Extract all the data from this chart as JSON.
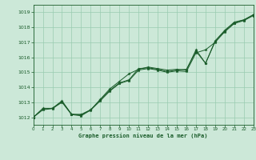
{
  "title": "Graphe pression niveau de la mer (hPa)",
  "xlim": [
    0,
    23
  ],
  "ylim": [
    1011.5,
    1019.5
  ],
  "yticks": [
    1012,
    1013,
    1014,
    1015,
    1016,
    1017,
    1018,
    1019
  ],
  "xticks": [
    0,
    1,
    2,
    3,
    4,
    5,
    6,
    7,
    8,
    9,
    10,
    11,
    12,
    13,
    14,
    15,
    16,
    17,
    18,
    19,
    20,
    21,
    22,
    23
  ],
  "bg_color": "#cce8d8",
  "grid_color": "#99ccb0",
  "line_color": "#1a5c2a",
  "series1": [
    1012.0,
    1012.6,
    1012.6,
    1013.1,
    1012.2,
    1012.2,
    1012.5,
    1013.2,
    1013.9,
    1014.4,
    1014.9,
    1015.2,
    1015.35,
    1015.25,
    1015.15,
    1015.2,
    1015.15,
    1016.5,
    1015.6,
    1017.1,
    1017.8,
    1018.35,
    1018.5,
    1018.85
  ],
  "series2": [
    1012.0,
    1012.55,
    1012.6,
    1013.05,
    1012.2,
    1012.15,
    1012.5,
    1013.15,
    1013.8,
    1014.3,
    1014.5,
    1015.25,
    1015.3,
    1015.2,
    1015.05,
    1015.15,
    1015.2,
    1016.4,
    1015.6,
    1017.05,
    1017.75,
    1018.3,
    1018.48,
    1018.82
  ],
  "series3": [
    1012.0,
    1012.5,
    1012.58,
    1013.0,
    1012.18,
    1012.1,
    1012.48,
    1013.1,
    1013.75,
    1014.25,
    1014.45,
    1015.15,
    1015.25,
    1015.15,
    1015.0,
    1015.1,
    1015.05,
    1016.3,
    1016.5,
    1017.0,
    1017.7,
    1018.25,
    1018.45,
    1018.78
  ]
}
